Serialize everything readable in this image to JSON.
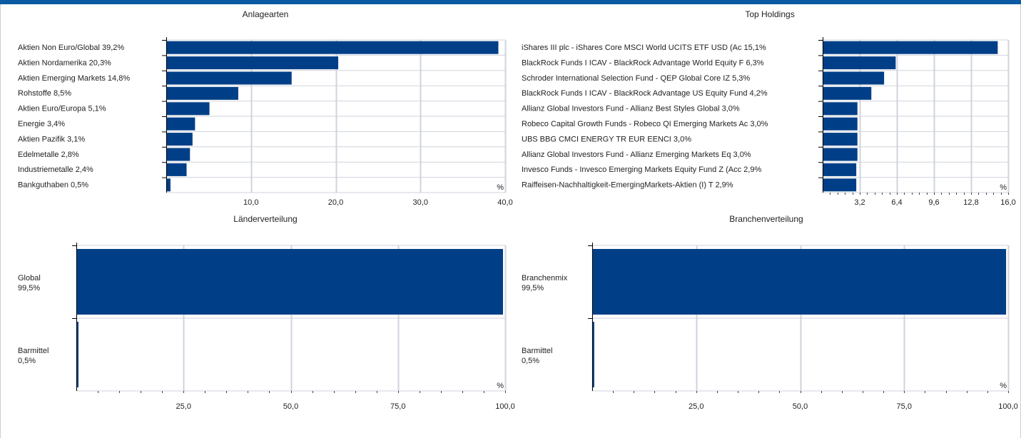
{
  "colors": {
    "bar": "#003f87",
    "grid": "#cfd3dc",
    "axis": "#000000",
    "header": "#0b5aa3"
  },
  "chart_data": [
    {
      "type": "bar",
      "orientation": "horizontal",
      "title": "Anlagearten",
      "unit": "%",
      "categories": [
        "Aktien Non Euro/Global",
        "Aktien Nordamerika",
        "Aktien Emerging Markets",
        "Rohstoffe",
        "Aktien Euro/Europa",
        "Energie",
        "Aktien Pazifik",
        "Edelmetalle",
        "Industriemetalle",
        "Bankguthaben"
      ],
      "value_labels": [
        "39,2%",
        "20,3%",
        "14,8%",
        "8,5%",
        "5,1%",
        "3,4%",
        "3,1%",
        "2,8%",
        "2,4%",
        "0,5%"
      ],
      "values": [
        39.2,
        20.3,
        14.8,
        8.5,
        5.1,
        3.4,
        3.1,
        2.8,
        2.4,
        0.5
      ],
      "xlim": [
        0,
        40
      ],
      "ticks": [
        10,
        20,
        30,
        40
      ],
      "tick_labels": [
        "10,0",
        "20,0",
        "30,0",
        "40,0"
      ],
      "grid": true
    },
    {
      "type": "bar",
      "orientation": "horizontal",
      "title": "Top Holdings",
      "unit": "%",
      "categories": [
        "iShares III plc - iShares Core MSCI World UCITS ETF USD (Ac",
        "BlackRock Funds I ICAV - BlackRock Advantage World Equity F",
        "Schroder International Selection Fund - QEP Global Core IZ",
        "BlackRock Funds I ICAV - BlackRock Advantage US Equity Fund",
        "Allianz Global Investors Fund - Allianz Best Styles Global",
        "Robeco Capital Growth Funds - Robeco QI Emerging Markets Ac",
        "UBS BBG CMCI ENERGY TR EUR EENCI",
        "Allianz Global Investors Fund - Allianz Emerging Markets Eq",
        "Invesco Funds - Invesco Emerging Markets Equity Fund Z (Acc",
        "Raiffeisen-Nachhaltigkeit-EmergingMarkets-Aktien (I) T"
      ],
      "value_labels": [
        "15,1%",
        "6,3%",
        "5,3%",
        "4,2%",
        "3,0%",
        "3,0%",
        "3,0%",
        "3,0%",
        "2,9%",
        "2,9%"
      ],
      "values": [
        15.1,
        6.3,
        5.3,
        4.2,
        3.0,
        3.0,
        3.0,
        3.0,
        2.9,
        2.9
      ],
      "xlim": [
        0,
        16
      ],
      "ticks": [
        3.2,
        6.4,
        9.6,
        12.8,
        16.0
      ],
      "tick_labels": [
        "3,2",
        "6,4",
        "9,6",
        "12,8",
        "16,0"
      ],
      "grid": true
    },
    {
      "type": "bar",
      "orientation": "horizontal",
      "title": "Länderverteilung",
      "unit": "%",
      "categories": [
        "Global",
        "Barmittel"
      ],
      "value_labels": [
        "99,5%",
        "0,5%"
      ],
      "values": [
        99.5,
        0.5
      ],
      "xlim": [
        0,
        100
      ],
      "ticks": [
        25,
        50,
        75,
        100
      ],
      "tick_labels": [
        "25,0",
        "50,0",
        "75,0",
        "100,0"
      ],
      "grid": true
    },
    {
      "type": "bar",
      "orientation": "horizontal",
      "title": "Branchenverteilung",
      "unit": "%",
      "categories": [
        "Branchenmix",
        "Barmittel"
      ],
      "value_labels": [
        "99,5%",
        "0,5%"
      ],
      "values": [
        99.5,
        0.5
      ],
      "xlim": [
        0,
        100
      ],
      "ticks": [
        25,
        50,
        75,
        100
      ],
      "tick_labels": [
        "25,0",
        "50,0",
        "75,0",
        "100,0"
      ],
      "grid": true
    }
  ]
}
